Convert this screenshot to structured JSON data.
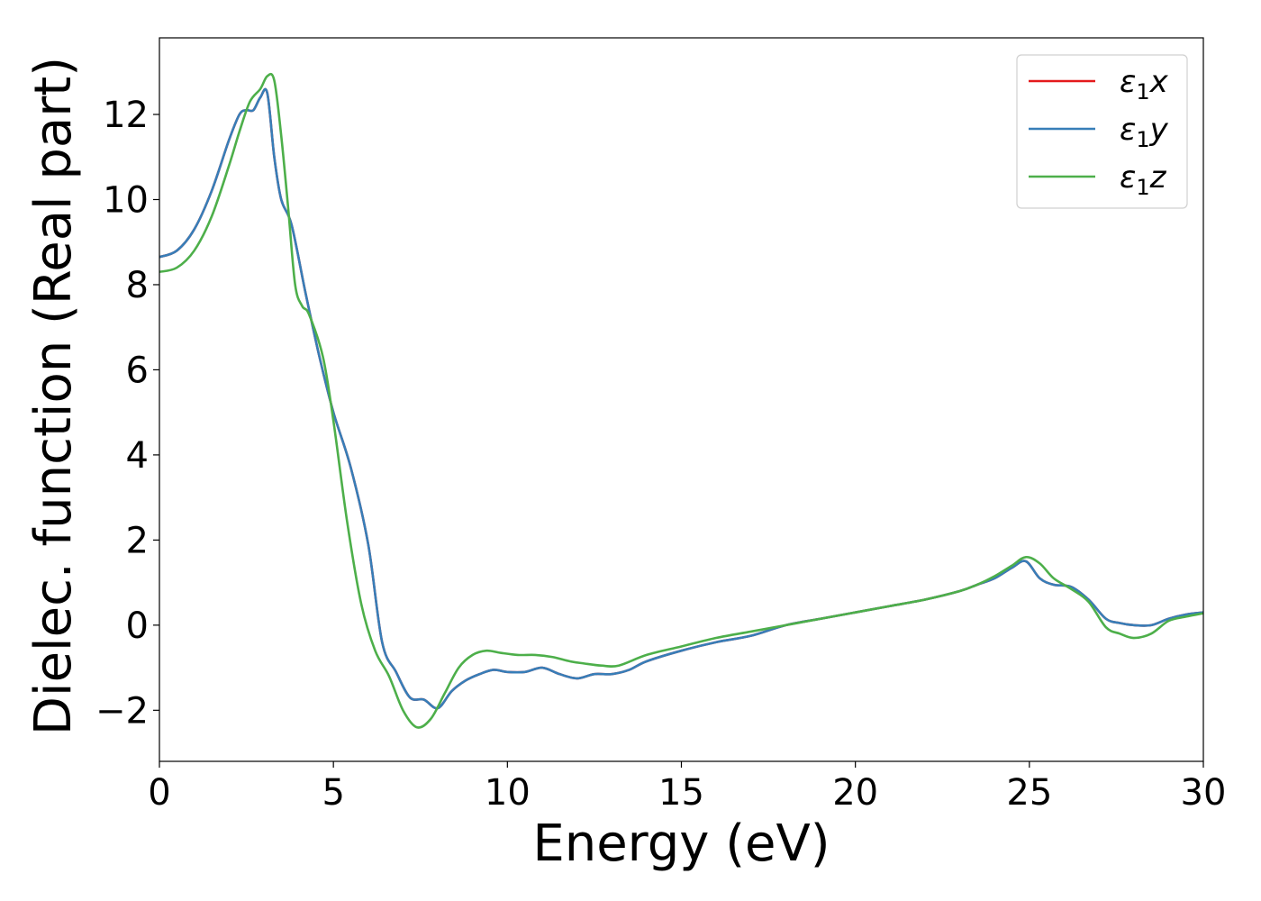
{
  "chart_data": {
    "type": "line",
    "title": "",
    "xlabel": "Energy (eV)",
    "ylabel": "Dielec. function (Real part)",
    "xlim": [
      0,
      30
    ],
    "ylim": [
      -3.2,
      13.8
    ],
    "xticks": [
      0,
      5,
      10,
      15,
      20,
      25,
      30
    ],
    "xtick_labels": [
      "0",
      "5",
      "10",
      "15",
      "20",
      "25",
      "30"
    ],
    "yticks": [
      -2,
      0,
      2,
      4,
      6,
      8,
      10,
      12
    ],
    "ytick_labels": [
      "−2",
      "0",
      "2",
      "4",
      "6",
      "8",
      "10",
      "12"
    ],
    "grid": false,
    "legend_position": "top-right",
    "series": [
      {
        "name": "ε1x",
        "color": "#e41a1c",
        "x": [
          0,
          0.5,
          1.0,
          1.5,
          2.0,
          2.3,
          2.5,
          2.7,
          2.9,
          3.1,
          3.3,
          3.5,
          3.8,
          4.2,
          4.6,
          5.0,
          5.5,
          6.0,
          6.4,
          6.8,
          7.2,
          7.6,
          8.0,
          8.4,
          8.8,
          9.2,
          9.6,
          10.0,
          10.5,
          11.0,
          11.5,
          12.0,
          12.5,
          13.0,
          13.5,
          14.0,
          15.0,
          16.0,
          17.0,
          18.0,
          19.0,
          20.0,
          21.0,
          22.0,
          23.0,
          23.5,
          24.0,
          24.5,
          24.9,
          25.3,
          25.7,
          26.2,
          26.7,
          27.2,
          27.6,
          28.0,
          28.5,
          29.0,
          29.5,
          30.0
        ],
        "y": [
          8.65,
          8.8,
          9.3,
          10.2,
          11.4,
          12.0,
          12.1,
          12.1,
          12.4,
          12.5,
          11.0,
          10.0,
          9.4,
          7.8,
          6.3,
          5.0,
          3.7,
          1.9,
          -0.4,
          -1.1,
          -1.7,
          -1.75,
          -1.95,
          -1.55,
          -1.3,
          -1.15,
          -1.05,
          -1.1,
          -1.1,
          -1.0,
          -1.15,
          -1.25,
          -1.15,
          -1.15,
          -1.05,
          -0.85,
          -0.6,
          -0.4,
          -0.25,
          0.0,
          0.15,
          0.3,
          0.45,
          0.6,
          0.8,
          0.95,
          1.1,
          1.35,
          1.5,
          1.1,
          0.95,
          0.9,
          0.6,
          0.15,
          0.05,
          0.0,
          0.0,
          0.15,
          0.25,
          0.3
        ]
      },
      {
        "name": "ε1y",
        "color": "#377eb8",
        "x": [
          0,
          0.5,
          1.0,
          1.5,
          2.0,
          2.3,
          2.5,
          2.7,
          2.9,
          3.1,
          3.3,
          3.5,
          3.8,
          4.2,
          4.6,
          5.0,
          5.5,
          6.0,
          6.4,
          6.8,
          7.2,
          7.6,
          8.0,
          8.4,
          8.8,
          9.2,
          9.6,
          10.0,
          10.5,
          11.0,
          11.5,
          12.0,
          12.5,
          13.0,
          13.5,
          14.0,
          15.0,
          16.0,
          17.0,
          18.0,
          19.0,
          20.0,
          21.0,
          22.0,
          23.0,
          23.5,
          24.0,
          24.5,
          24.9,
          25.3,
          25.7,
          26.2,
          26.7,
          27.2,
          27.6,
          28.0,
          28.5,
          29.0,
          29.5,
          30.0
        ],
        "y": [
          8.65,
          8.8,
          9.3,
          10.2,
          11.4,
          12.0,
          12.1,
          12.1,
          12.4,
          12.5,
          11.0,
          10.0,
          9.4,
          7.8,
          6.3,
          5.0,
          3.7,
          1.9,
          -0.4,
          -1.1,
          -1.7,
          -1.75,
          -1.95,
          -1.55,
          -1.3,
          -1.15,
          -1.05,
          -1.1,
          -1.1,
          -1.0,
          -1.15,
          -1.25,
          -1.15,
          -1.15,
          -1.05,
          -0.85,
          -0.6,
          -0.4,
          -0.25,
          0.0,
          0.15,
          0.3,
          0.45,
          0.6,
          0.8,
          0.95,
          1.1,
          1.35,
          1.5,
          1.1,
          0.95,
          0.9,
          0.6,
          0.15,
          0.05,
          0.0,
          0.0,
          0.15,
          0.25,
          0.3
        ]
      },
      {
        "name": "ε1z",
        "color": "#4daf4a",
        "x": [
          0,
          0.5,
          1.0,
          1.5,
          2.0,
          2.3,
          2.6,
          2.9,
          3.1,
          3.3,
          3.5,
          3.7,
          3.9,
          4.1,
          4.3,
          4.7,
          5.0,
          5.4,
          5.8,
          6.2,
          6.6,
          7.0,
          7.4,
          7.8,
          8.2,
          8.6,
          9.0,
          9.4,
          9.8,
          10.3,
          10.8,
          11.3,
          11.8,
          12.2,
          12.7,
          13.2,
          14.0,
          15.0,
          16.0,
          17.0,
          18.0,
          19.0,
          20.0,
          21.0,
          22.0,
          23.0,
          23.5,
          24.0,
          24.5,
          24.9,
          25.3,
          25.7,
          26.2,
          26.7,
          27.2,
          27.6,
          28.0,
          28.5,
          29.0,
          29.5,
          30.0
        ],
        "y": [
          8.3,
          8.4,
          8.8,
          9.6,
          10.8,
          11.6,
          12.3,
          12.6,
          12.9,
          12.8,
          11.5,
          9.8,
          8.0,
          7.5,
          7.3,
          6.3,
          4.8,
          2.4,
          0.5,
          -0.6,
          -1.2,
          -2.0,
          -2.4,
          -2.2,
          -1.6,
          -1.0,
          -0.7,
          -0.6,
          -0.65,
          -0.7,
          -0.7,
          -0.75,
          -0.85,
          -0.9,
          -0.95,
          -0.95,
          -0.7,
          -0.5,
          -0.3,
          -0.15,
          0.0,
          0.15,
          0.3,
          0.45,
          0.6,
          0.8,
          0.95,
          1.15,
          1.4,
          1.6,
          1.45,
          1.1,
          0.85,
          0.55,
          -0.05,
          -0.2,
          -0.3,
          -0.2,
          0.1,
          0.2,
          0.28
        ]
      }
    ]
  }
}
